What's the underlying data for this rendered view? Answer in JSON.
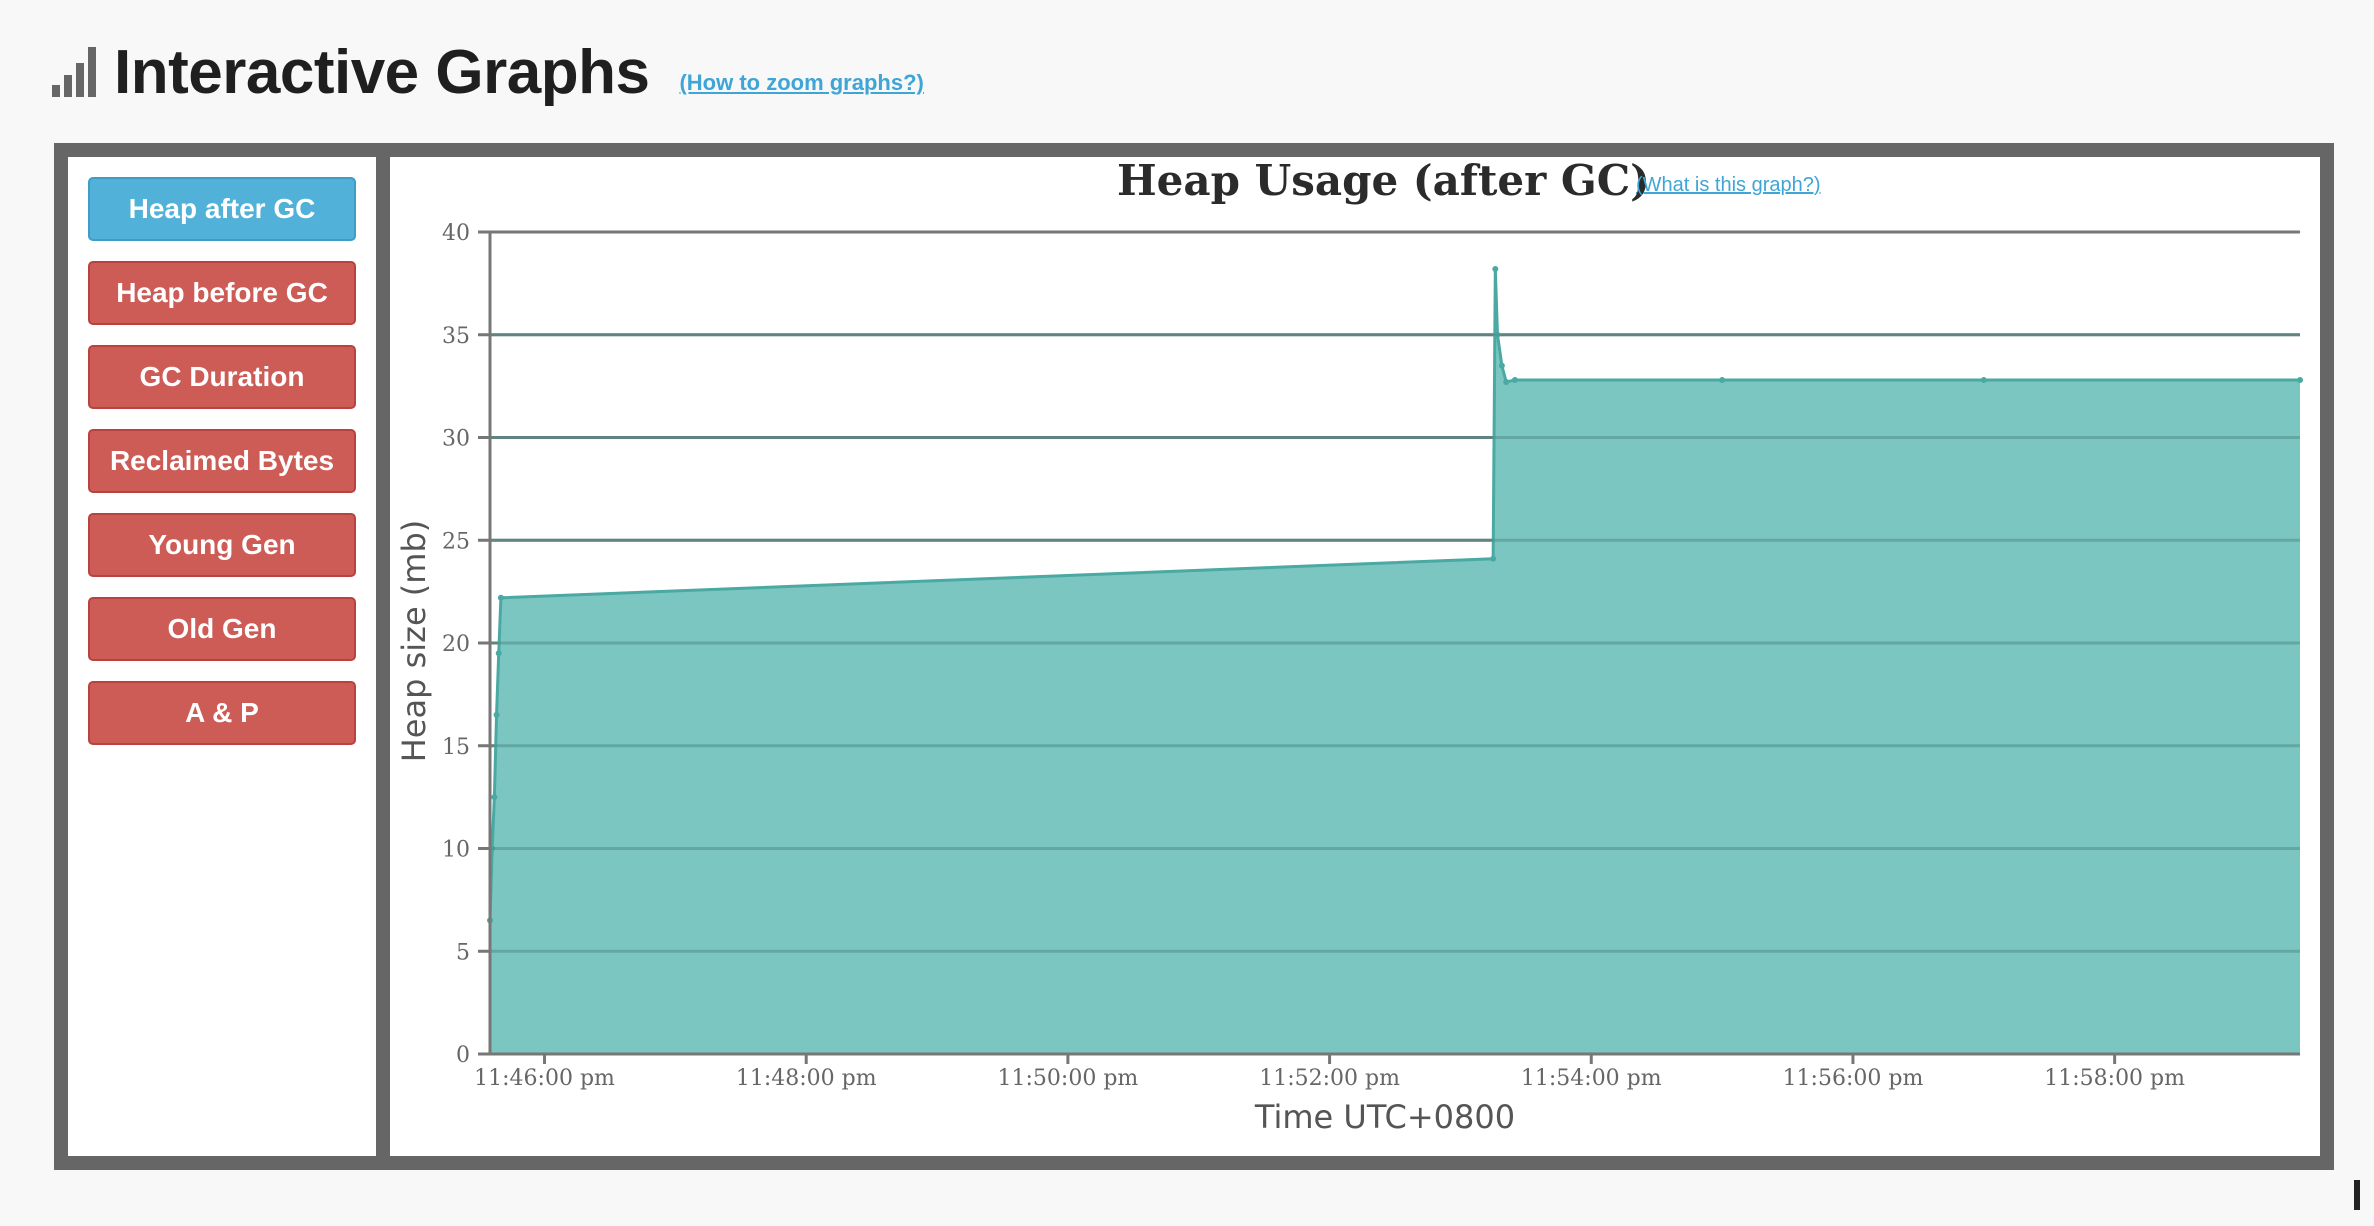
{
  "header": {
    "title": "Interactive Graphs",
    "zoom_link": "(How to zoom graphs?)"
  },
  "sidebar": {
    "items": [
      {
        "label": "Heap after GC",
        "active": true
      },
      {
        "label": "Heap before GC",
        "active": false
      },
      {
        "label": "GC Duration",
        "active": false
      },
      {
        "label": "Reclaimed Bytes",
        "active": false
      },
      {
        "label": "Young Gen",
        "active": false
      },
      {
        "label": "Old Gen",
        "active": false
      },
      {
        "label": "A & P",
        "active": false
      }
    ]
  },
  "chart_help_link": "(What is this graph?)",
  "colors": {
    "active_button": "#52b1d9",
    "inactive_button": "#cd5c57",
    "series_fill": "#7bc6c0",
    "series_line": "#4aa9a2"
  },
  "chart_data": {
    "type": "area",
    "title": "Heap Usage (after GC)",
    "xlabel": "Time UTC+0800",
    "ylabel": "Heap size (mb)",
    "ylim": [
      0,
      40
    ],
    "y_ticks": [
      "0",
      "5",
      "10",
      "15",
      "20",
      "25",
      "30",
      "35",
      "40"
    ],
    "x_ticks": [
      "11:46:00 pm",
      "11:48:00 pm",
      "11:50:00 pm",
      "11:52:00 pm",
      "11:54:00 pm",
      "11:56:00 pm",
      "11:58:00 pm"
    ],
    "xlim": [
      "11:45:35 pm",
      "11:59:25 pm"
    ],
    "grid": true,
    "series": [
      {
        "x": [
          "11:45:35 pm",
          "11:45:36 pm",
          "11:45:37 pm",
          "11:45:38 pm",
          "11:45:39 pm",
          "11:45:40 pm",
          "11:53:15 pm",
          "11:53:16 pm",
          "11:53:17 pm",
          "11:53:19 pm",
          "11:53:21 pm",
          "11:53:25 pm",
          "11:55:00 pm",
          "11:57:00 pm",
          "11:59:25 pm"
        ],
        "y": [
          6.5,
          10,
          12.5,
          16.5,
          19.5,
          22.2,
          24.1,
          38.2,
          35,
          33.5,
          32.7,
          32.8,
          32.8,
          32.8,
          32.8
        ]
      }
    ]
  }
}
